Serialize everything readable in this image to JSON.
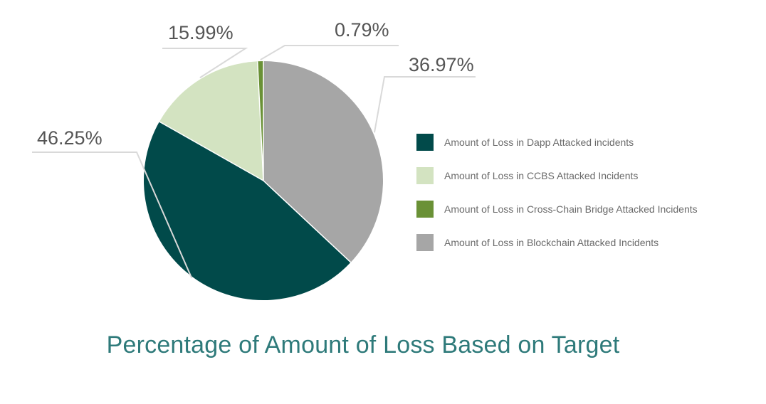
{
  "chart_data": {
    "type": "pie",
    "title": "Percentage of Amount of Loss Based on Target",
    "slices": [
      {
        "name": "Amount of Loss in Dapp Attacked incidents",
        "value": 46.25,
        "label": "46.25%",
        "color": "#014a4a"
      },
      {
        "name": "Amount of Loss in CCBS Attacked Incidents",
        "value": 15.99,
        "label": "15.99%",
        "color": "#d3e3c1"
      },
      {
        "name": "Amount of Loss in Cross-Chain Bridge Attacked Incidents",
        "value": 0.79,
        "label": "0.79%",
        "color": "#6a9136"
      },
      {
        "name": "Amount of Loss in Blockchain Attacked Incidents",
        "value": 36.97,
        "label": "36.97%",
        "color": "#a6a6a6"
      }
    ],
    "legend_position": "right"
  }
}
